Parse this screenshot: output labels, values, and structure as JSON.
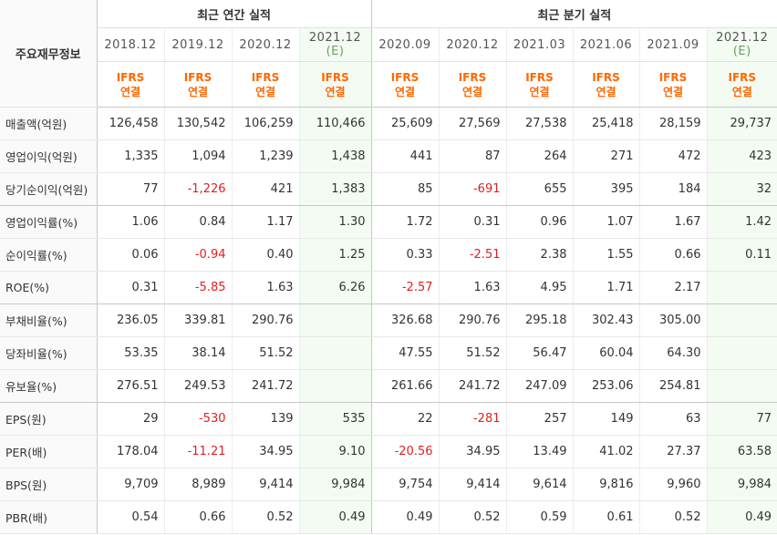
{
  "header": {
    "label_col": "주요재무정보",
    "annual_title": "최근 연간 실적",
    "quarter_title": "최근 분기 실적",
    "annual_periods": [
      {
        "year": "2018.12",
        "est": ""
      },
      {
        "year": "2019.12",
        "est": ""
      },
      {
        "year": "2020.12",
        "est": ""
      },
      {
        "year": "2021.12",
        "est": "(E)"
      }
    ],
    "quarter_periods": [
      {
        "year": "2020.09",
        "est": ""
      },
      {
        "year": "2020.12",
        "est": ""
      },
      {
        "year": "2021.03",
        "est": ""
      },
      {
        "year": "2021.06",
        "est": ""
      },
      {
        "year": "2021.09",
        "est": ""
      },
      {
        "year": "2021.12",
        "est": "(E)"
      }
    ],
    "accounting_line1": "IFRS",
    "accounting_line2": "연결"
  },
  "rows": [
    {
      "label": "매출액(억원)",
      "values": [
        "126,458",
        "130,542",
        "106,259",
        "110,466",
        "25,609",
        "27,569",
        "27,538",
        "25,418",
        "28,159",
        "29,737"
      ]
    },
    {
      "label": "영업이익(억원)",
      "values": [
        "1,335",
        "1,094",
        "1,239",
        "1,438",
        "441",
        "87",
        "264",
        "271",
        "472",
        "423"
      ]
    },
    {
      "label": "당기순이익(억원)",
      "values": [
        "77",
        "-1,226",
        "421",
        "1,383",
        "85",
        "-691",
        "655",
        "395",
        "184",
        "32"
      ]
    },
    {
      "label": "영업이익률(%)",
      "values": [
        "1.06",
        "0.84",
        "1.17",
        "1.30",
        "1.72",
        "0.31",
        "0.96",
        "1.07",
        "1.67",
        "1.42"
      ]
    },
    {
      "label": "순이익률(%)",
      "values": [
        "0.06",
        "-0.94",
        "0.40",
        "1.25",
        "0.33",
        "-2.51",
        "2.38",
        "1.55",
        "0.66",
        "0.11"
      ]
    },
    {
      "label": "ROE(%)",
      "values": [
        "0.31",
        "-5.85",
        "1.63",
        "6.26",
        "-2.57",
        "1.63",
        "4.95",
        "1.71",
        "2.17",
        ""
      ]
    },
    {
      "label": "부채비율(%)",
      "values": [
        "236.05",
        "339.81",
        "290.76",
        "",
        "326.68",
        "290.76",
        "295.18",
        "302.43",
        "305.00",
        ""
      ]
    },
    {
      "label": "당좌비율(%)",
      "values": [
        "53.35",
        "38.14",
        "51.52",
        "",
        "47.55",
        "51.52",
        "56.47",
        "60.04",
        "64.30",
        ""
      ]
    },
    {
      "label": "유보율(%)",
      "values": [
        "276.51",
        "249.53",
        "241.72",
        "",
        "261.66",
        "241.72",
        "247.09",
        "253.06",
        "254.81",
        ""
      ]
    },
    {
      "label": "EPS(원)",
      "values": [
        "29",
        "-530",
        "139",
        "535",
        "22",
        "-281",
        "257",
        "149",
        "63",
        "77"
      ]
    },
    {
      "label": "PER(배)",
      "values": [
        "178.04",
        "-11.21",
        "34.95",
        "9.10",
        "-20.56",
        "34.95",
        "13.49",
        "41.02",
        "27.37",
        "63.58"
      ]
    },
    {
      "label": "BPS(원)",
      "values": [
        "9,709",
        "8,989",
        "9,414",
        "9,984",
        "9,754",
        "9,414",
        "9,614",
        "9,816",
        "9,960",
        "9,984"
      ]
    },
    {
      "label": "PBR(배)",
      "values": [
        "0.54",
        "0.66",
        "0.52",
        "0.49",
        "0.49",
        "0.52",
        "0.59",
        "0.61",
        "0.52",
        "0.49"
      ]
    }
  ]
}
